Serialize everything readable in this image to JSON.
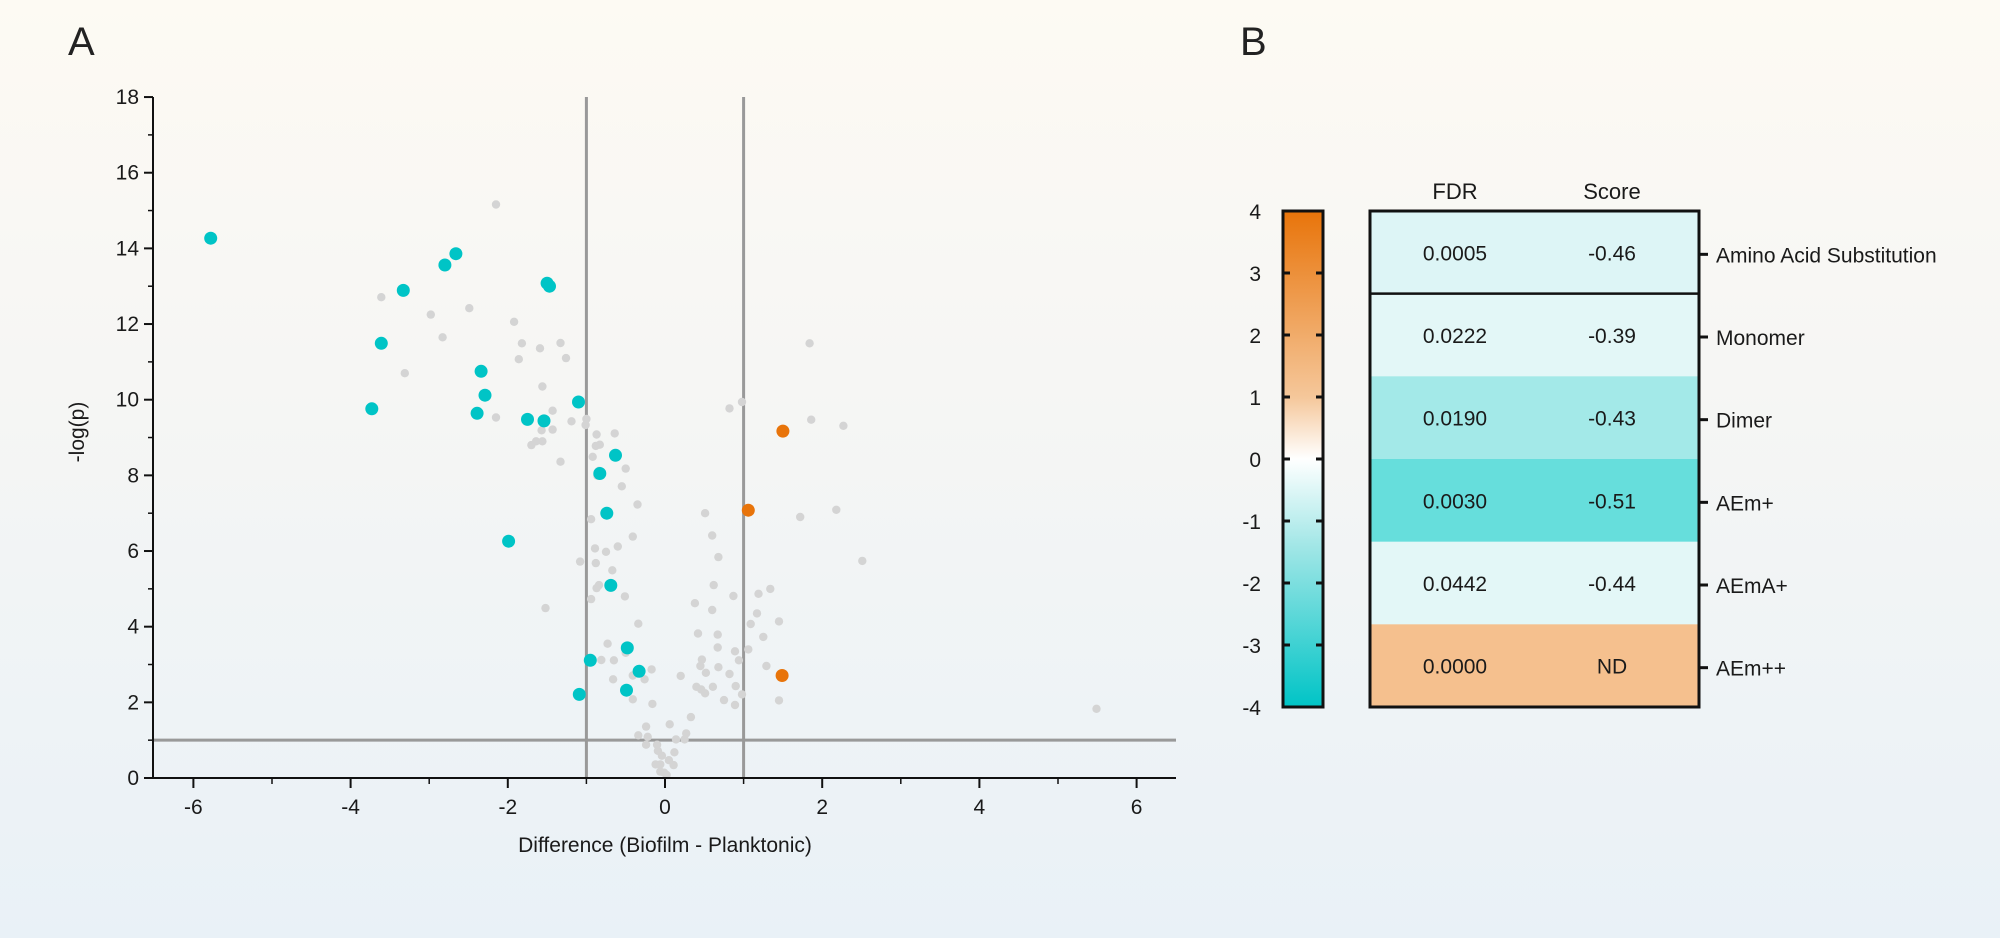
{
  "panels": {
    "a_label": "A",
    "b_label": "B"
  },
  "colors": {
    "sig_down": "#00C4C6",
    "sig_up": "#E8740A",
    "nonsig": "#D4D4D4",
    "threshold_line": "#999999",
    "colorbar_top": "#E8740A",
    "colorbar_mid_upper": "#F5C79A",
    "colorbar_zero": "#FFFFFF",
    "colorbar_mid_lower": "#9FE6E6",
    "colorbar_bottom": "#00C4C6"
  },
  "chart_data": [
    {
      "type": "scatter",
      "title": "",
      "xlabel": "Difference (Biofilm - Planktonic)",
      "ylabel": "-log(p)",
      "xlim": [
        -6.5,
        6.5
      ],
      "ylim": [
        0,
        18
      ],
      "xticks": [
        -6,
        -4,
        -2,
        0,
        2,
        4,
        6
      ],
      "xtick_labels": [
        "-6",
        "-4",
        "-2",
        "0",
        "2",
        "4",
        "6"
      ],
      "xminor_ticks": [
        -5,
        -3,
        -1,
        1,
        3,
        5
      ],
      "yticks": [
        0,
        2,
        4,
        6,
        8,
        10,
        12,
        14,
        16,
        18
      ],
      "ytick_labels": [
        "0",
        "2",
        "4",
        "6",
        "8",
        "10",
        "12",
        "14",
        "16",
        "18"
      ],
      "yminor_ticks": [
        1,
        3,
        5,
        7,
        9,
        11,
        13,
        15,
        17
      ],
      "grid": false,
      "reference_lines": {
        "vertical_x": [
          -1,
          1
        ],
        "horizontal_y": [
          1
        ]
      },
      "series": [
        {
          "name": "significant-down",
          "color": "#00C4C6",
          "points": [
            [
              -5.78,
              14.27
            ],
            [
              -3.33,
              12.89
            ],
            [
              -3.61,
              11.49
            ],
            [
              -3.73,
              9.76
            ],
            [
              -2.8,
              13.56
            ],
            [
              -2.66,
              13.86
            ],
            [
              -1.5,
              13.08
            ],
            [
              -1.47,
              13.0
            ],
            [
              -2.34,
              10.75
            ],
            [
              -2.29,
              10.12
            ],
            [
              -2.39,
              9.64
            ],
            [
              -1.75,
              9.48
            ],
            [
              -1.54,
              9.44
            ],
            [
              -1.1,
              9.94
            ],
            [
              -1.99,
              6.26
            ],
            [
              -0.63,
              8.53
            ],
            [
              -0.83,
              8.05
            ],
            [
              -0.74,
              7.0
            ],
            [
              -0.69,
              5.09
            ],
            [
              -0.48,
              3.44
            ],
            [
              -0.95,
              3.11
            ],
            [
              -0.33,
              2.82
            ],
            [
              -0.49,
              2.32
            ],
            [
              -1.09,
              2.21
            ]
          ]
        },
        {
          "name": "significant-up",
          "color": "#E8740A",
          "points": [
            [
              1.5,
              9.17
            ],
            [
              1.06,
              7.08
            ],
            [
              1.49,
              2.71
            ]
          ]
        },
        {
          "name": "not-significant",
          "color": "#D4D4D4",
          "points": [
            [
              -2.15,
              15.16
            ],
            [
              -3.61,
              12.71
            ],
            [
              -2.98,
              12.25
            ],
            [
              -2.83,
              11.65
            ],
            [
              -3.31,
              10.7
            ],
            [
              -2.49,
              12.42
            ],
            [
              -1.92,
              12.06
            ],
            [
              -1.82,
              11.49
            ],
            [
              -1.59,
              11.36
            ],
            [
              -1.33,
              11.5
            ],
            [
              -1.86,
              11.07
            ],
            [
              -1.26,
              11.1
            ],
            [
              -1.56,
              10.35
            ],
            [
              -1.43,
              9.71
            ],
            [
              -2.15,
              9.53
            ],
            [
              -1.19,
              9.43
            ],
            [
              -1.0,
              9.49
            ],
            [
              -1.01,
              9.33
            ],
            [
              -1.57,
              9.19
            ],
            [
              -1.43,
              9.21
            ],
            [
              -0.87,
              9.08
            ],
            [
              -0.64,
              9.11
            ],
            [
              -1.7,
              8.8
            ],
            [
              -1.64,
              8.9
            ],
            [
              -1.56,
              8.9
            ],
            [
              -0.88,
              8.78
            ],
            [
              -0.83,
              8.81
            ],
            [
              -0.92,
              8.49
            ],
            [
              -1.33,
              8.36
            ],
            [
              -0.5,
              8.18
            ],
            [
              -0.86,
              7.99
            ],
            [
              -0.84,
              8.12
            ],
            [
              -0.55,
              7.71
            ],
            [
              -0.35,
              7.23
            ],
            [
              -0.94,
              6.84
            ],
            [
              -0.41,
              6.38
            ],
            [
              -0.89,
              6.07
            ],
            [
              -0.75,
              5.98
            ],
            [
              -0.6,
              6.12
            ],
            [
              -1.08,
              5.72
            ],
            [
              -0.88,
              5.68
            ],
            [
              -0.67,
              5.49
            ],
            [
              -0.87,
              5.02
            ],
            [
              -0.84,
              5.1
            ],
            [
              -0.51,
              4.8
            ],
            [
              -0.94,
              4.73
            ],
            [
              -1.52,
              4.49
            ],
            [
              -0.34,
              4.08
            ],
            [
              -0.73,
              3.55
            ],
            [
              -0.81,
              3.12
            ],
            [
              -0.65,
              3.11
            ],
            [
              -0.5,
              3.31
            ],
            [
              -0.17,
              2.87
            ],
            [
              -0.41,
              2.71
            ],
            [
              -0.26,
              2.61
            ],
            [
              -0.66,
              2.61
            ],
            [
              -0.41,
              2.08
            ],
            [
              -0.16,
              1.96
            ],
            [
              0.33,
              1.61
            ],
            [
              0.06,
              1.42
            ],
            [
              -0.24,
              1.36
            ],
            [
              -0.34,
              1.13
            ],
            [
              -0.22,
              1.09
            ],
            [
              0.27,
              1.18
            ],
            [
              0.14,
              1.02
            ],
            [
              0.25,
              1.02
            ],
            [
              -0.24,
              0.88
            ],
            [
              -0.1,
              0.88
            ],
            [
              -0.09,
              0.72
            ],
            [
              -0.04,
              0.59
            ],
            [
              0.12,
              0.68
            ],
            [
              0.05,
              0.47
            ],
            [
              0.11,
              0.34
            ],
            [
              -0.12,
              0.36
            ],
            [
              -0.06,
              0.36
            ],
            [
              -0.06,
              0.17
            ],
            [
              -0.01,
              0.14
            ],
            [
              0.02,
              0.08
            ],
            [
              0.62,
              5.1
            ],
            [
              0.87,
              4.81
            ],
            [
              0.38,
              4.62
            ],
            [
              0.6,
              4.44
            ],
            [
              0.42,
              3.82
            ],
            [
              0.67,
              3.79
            ],
            [
              0.67,
              3.45
            ],
            [
              0.89,
              3.35
            ],
            [
              0.47,
              3.13
            ],
            [
              0.45,
              2.96
            ],
            [
              0.52,
              2.78
            ],
            [
              0.68,
              2.93
            ],
            [
              0.82,
              2.75
            ],
            [
              0.94,
              3.11
            ],
            [
              0.2,
              2.7
            ],
            [
              0.4,
              2.41
            ],
            [
              0.46,
              2.34
            ],
            [
              0.51,
              2.24
            ],
            [
              0.61,
              2.41
            ],
            [
              0.75,
              2.06
            ],
            [
              0.89,
              1.93
            ],
            [
              0.9,
              2.43
            ],
            [
              1.84,
              11.49
            ],
            [
              0.82,
              9.77
            ],
            [
              0.98,
              9.94
            ],
            [
              1.86,
              9.47
            ],
            [
              2.27,
              9.31
            ],
            [
              0.51,
              7.0
            ],
            [
              1.72,
              6.9
            ],
            [
              2.18,
              7.09
            ],
            [
              0.6,
              6.41
            ],
            [
              0.68,
              5.84
            ],
            [
              2.51,
              5.74
            ],
            [
              1.19,
              4.87
            ],
            [
              1.34,
              5.0
            ],
            [
              1.17,
              4.35
            ],
            [
              1.09,
              4.07
            ],
            [
              1.45,
              4.14
            ],
            [
              1.25,
              3.73
            ],
            [
              1.06,
              3.4
            ],
            [
              1.29,
              2.96
            ],
            [
              0.98,
              2.21
            ],
            [
              1.45,
              2.05
            ],
            [
              5.49,
              1.83
            ]
          ]
        }
      ]
    },
    {
      "type": "heatmap",
      "title": "",
      "columns": [
        "FDR",
        "Score"
      ],
      "rows": [
        "Amino Acid Substitution",
        "Monomer",
        "Dimer",
        "AEm+",
        "AEmA+",
        "AEm++"
      ],
      "cells": [
        {
          "fdr": "0.0005",
          "score": "-0.46",
          "color": "#DDF5F6"
        },
        {
          "fdr": "0.0222",
          "score": "-0.39",
          "color": "#E3F7F7"
        },
        {
          "fdr": "0.0190",
          "score": "-0.43",
          "color": "#A3E9E8"
        },
        {
          "fdr": "0.0030",
          "score": "-0.51",
          "color": "#66DEDC"
        },
        {
          "fdr": "0.0442",
          "score": "-0.44",
          "color": "#E3F7F7"
        },
        {
          "fdr": "0.0000",
          "score": "ND",
          "color": "#F5C08E"
        }
      ],
      "separator_after_row": 0,
      "colorbar": {
        "range": [
          -4,
          4
        ],
        "ticks": [
          4,
          3,
          2,
          1,
          0,
          -1,
          -2,
          -3,
          -4
        ],
        "tick_labels": [
          "4",
          "3",
          "2",
          "1",
          "0",
          "-1",
          "-2",
          "-3",
          "-4"
        ]
      }
    }
  ]
}
